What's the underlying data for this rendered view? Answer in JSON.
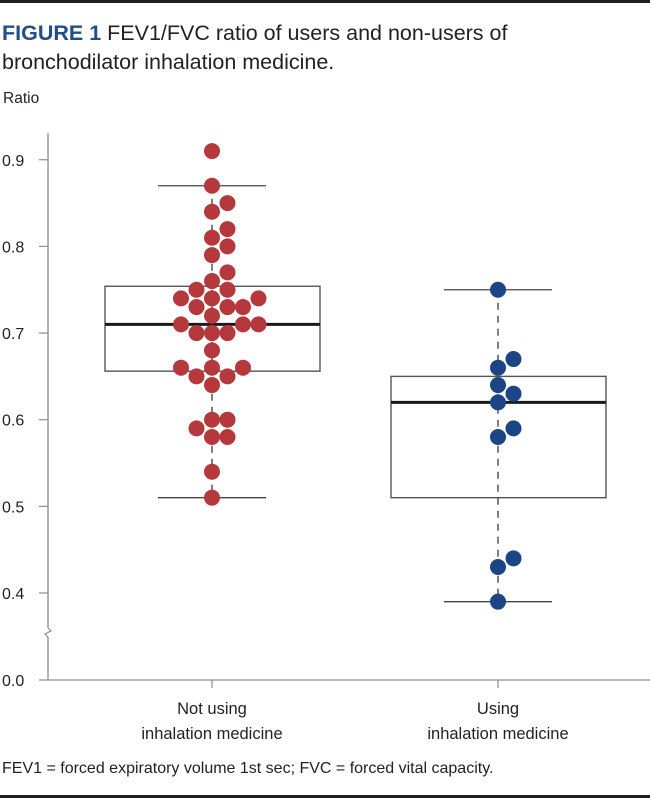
{
  "figure": {
    "label": "FIGURE 1",
    "caption": "FEV1/FVC ratio of users and non-users of bronchodilator inhalation medicine.",
    "footnote": "FEV1 = forced expiratory volume 1st sec; FVC = forced vital capacity."
  },
  "chart_data": {
    "type": "box-with-dotplot",
    "title": "FEV1/FVC ratio of users and non-users of bronchodilator inhalation medicine.",
    "xlabel": "",
    "ylabel": "Ratio",
    "ylim": [
      0.0,
      0.95
    ],
    "axis_break": "between 0.0 and 0.4",
    "yticks": [
      0.0,
      0.4,
      0.5,
      0.6,
      0.7,
      0.8,
      0.9
    ],
    "ytick_labels": [
      "0.0",
      "0.4",
      "0.5",
      "0.6",
      "0.7",
      "0.8",
      "0.9"
    ],
    "grid": false,
    "legend": "none",
    "categories": [
      "Not using\ninhalation medicine",
      "Using\ninhalation medicine"
    ],
    "category_lines": [
      [
        "Not using",
        "inhalation medicine"
      ],
      [
        "Using",
        "inhalation medicine"
      ]
    ],
    "series": [
      {
        "name": "Not using inhalation medicine",
        "color": "#b5383c",
        "box": {
          "q1": 0.656,
          "median": 0.71,
          "q3": 0.754,
          "whisker_low": 0.51,
          "whisker_high": 0.87
        },
        "points": [
          0.91,
          0.87,
          0.85,
          0.84,
          0.82,
          0.81,
          0.8,
          0.79,
          0.77,
          0.76,
          0.75,
          0.75,
          0.74,
          0.74,
          0.74,
          0.73,
          0.73,
          0.73,
          0.72,
          0.71,
          0.71,
          0.71,
          0.7,
          0.7,
          0.7,
          0.68,
          0.66,
          0.66,
          0.66,
          0.65,
          0.65,
          0.64,
          0.6,
          0.6,
          0.59,
          0.58,
          0.58,
          0.54,
          0.51
        ],
        "point_offsets": [
          0,
          0,
          1,
          0,
          1,
          0,
          1,
          0,
          1,
          0,
          -1,
          1,
          -2,
          0,
          3,
          -1,
          1,
          2,
          0,
          -2,
          2,
          3,
          -1,
          0,
          1,
          0,
          -2,
          0,
          2,
          -1,
          1,
          0,
          0,
          1,
          -1,
          0,
          1,
          0,
          0
        ]
      },
      {
        "name": "Using inhalation medicine",
        "color": "#1b4584",
        "box": {
          "q1": 0.51,
          "median": 0.62,
          "q3": 0.65,
          "whisker_low": 0.39,
          "whisker_high": 0.75
        },
        "points": [
          0.75,
          0.67,
          0.66,
          0.64,
          0.63,
          0.62,
          0.59,
          0.58,
          0.44,
          0.43,
          0.39
        ],
        "point_offsets": [
          0,
          1,
          0,
          0,
          1,
          0,
          1,
          0,
          1,
          0,
          0
        ]
      }
    ]
  }
}
